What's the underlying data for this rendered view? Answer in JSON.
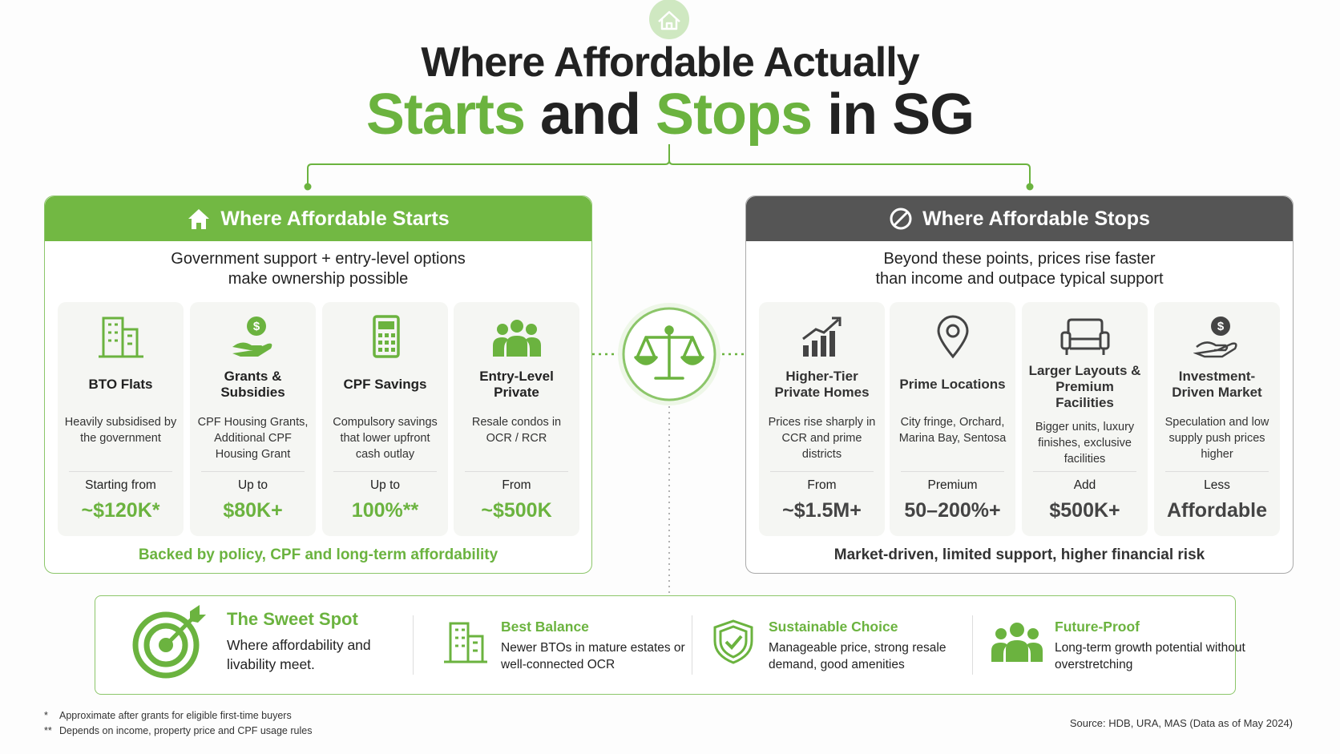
{
  "header": {
    "title_line1": "Where Affordable Actually",
    "title_line2": [
      "Starts",
      "and",
      "Stops",
      "in SG"
    ]
  },
  "left_panel": {
    "title": "Where Affordable Starts",
    "subtitle": "Government support + entry-level options make ownership possible",
    "cards": [
      {
        "title": "BTO Flats",
        "description": "Heavily subsidised by the government",
        "label": "Starting from",
        "value": "~$120K*"
      },
      {
        "title": "Grants & Subsidies",
        "description": "CPF Housing Grants, Additional CPF Housing Grant",
        "label": "Up to",
        "value": "$80K+"
      },
      {
        "title": "CPF Savings",
        "description": "Compulsory savings that lower upfront cash outlay",
        "label": "Up to",
        "value": "100%**"
      },
      {
        "title": "Entry-Level Private",
        "description": "Resale condos in OCR / RCR",
        "label": "From",
        "value": "~$500K"
      }
    ],
    "footer": "Backed by policy, CPF and long-term affordability"
  },
  "right_panel": {
    "title": "Where Affordable Stops",
    "subtitle": "Beyond these points, prices rise faster than income and outpace typical support",
    "cards": [
      {
        "title": "Higher-Tier Private Homes",
        "description": "Prices rise sharply in CCR and prime districts",
        "label": "From",
        "value": "~$1.5M+"
      },
      {
        "title": "Prime Locations",
        "description": "City fringe, Orchard, Marina Bay, Sentosa",
        "label": "Premium",
        "value": "50–200%+"
      },
      {
        "title": "Larger Layouts & Premium Facilities",
        "description": "Bigger units, luxury finishes, exclusive facilities",
        "label": "Add",
        "value": "$500K+"
      },
      {
        "title": "Investment-Driven Market",
        "description": "Speculation and low supply push prices higher",
        "label": "Less",
        "value": "Affordable"
      }
    ],
    "footer": "Market-driven, limited support, higher financial risk"
  },
  "sweet_spot": {
    "title": "The Sweet Spot",
    "description": "Where affordability and livability meet.",
    "items": [
      {
        "title": "Best Balance",
        "description": "Newer BTOs in mature estates or well-connected OCR"
      },
      {
        "title": "Sustainable Choice",
        "description": "Manageable price, strong resale demand, good amenities"
      },
      {
        "title": "Future-Proof",
        "description": "Long-term growth potential without overstretching"
      }
    ]
  },
  "footnotes": [
    {
      "mark": "*",
      "text": "Approximate after grants for eligible first-time buyers"
    },
    {
      "mark": "**",
      "text": "Depends on income, property price and CPF usage rules"
    }
  ],
  "source": "Source: HDB, URA, MAS (Data as of May 2024)"
}
